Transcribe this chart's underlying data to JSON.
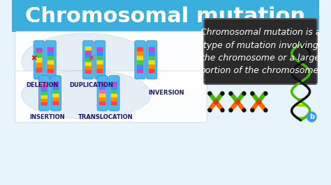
{
  "title": "Chromosomal mutation",
  "title_bg": "#3aaedc",
  "title_color": "#ffffff",
  "body_bg": "#e8f4fb",
  "definition_box_bg": "#2a2a2a",
  "definition_text": "Chromosomal mutation is a\ntype of mutation involving\nthe chromosome or a large\nportion of the chromosome.",
  "definition_text_color": "#ffffff",
  "labels": [
    "DELETION",
    "DUPLICATION",
    "INSERTION",
    "TRANSLOCATION",
    "INVERSION"
  ],
  "label_color": "#1a1a6e",
  "chr_blue": "#4db8f0",
  "chr_dark_blue": "#2288cc",
  "band_colors": [
    "#ff4444",
    "#ff8800",
    "#ffdd00",
    "#44cc44",
    "#4488ff",
    "#cc44cc"
  ],
  "chalkboard_font_size": 9,
  "title_font_size": 22,
  "label_font_size": 6,
  "dna_green": "#44bb00",
  "dna_yellow": "#ffee00",
  "dna_black": "#111111",
  "chromosome_x_green": "#44bb00",
  "chromosome_x_orange": "#ff6600"
}
